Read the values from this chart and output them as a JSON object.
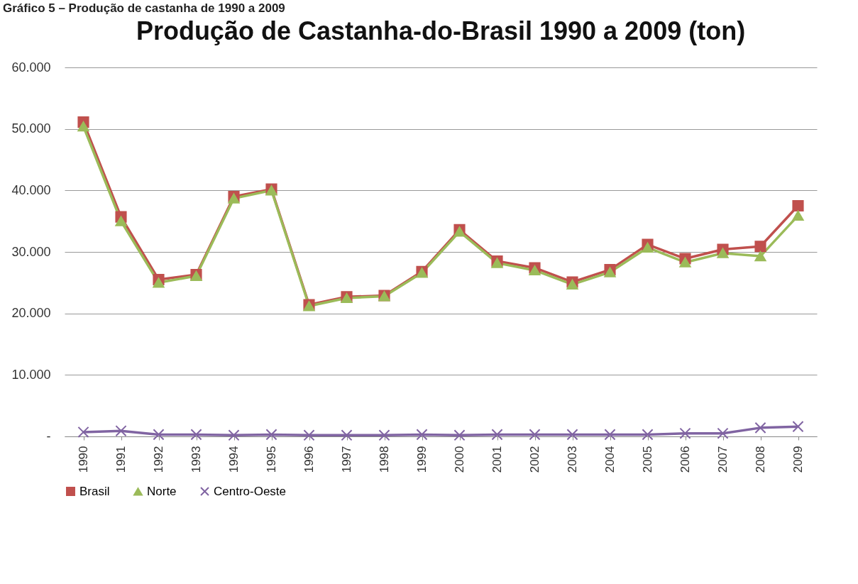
{
  "chart_data": {
    "type": "line",
    "title": "Produção de Castanha-do-Brasil 1990 a 2009 (ton)",
    "annotations": [
      "Gráfico 5 – Produção de castanha de 1990 a 2009"
    ],
    "categories": [
      "1990",
      "1991",
      "1992",
      "1993",
      "1994",
      "1995",
      "1996",
      "1997",
      "1998",
      "1999",
      "2000",
      "2001",
      "2002",
      "2003",
      "2004",
      "2005",
      "2006",
      "2007",
      "2008",
      "2009"
    ],
    "series": [
      {
        "name": "Brasil",
        "color": "#c0504d",
        "marker": "square",
        "values": [
          51100,
          35700,
          25500,
          26300,
          39000,
          40200,
          21400,
          22700,
          22900,
          26800,
          33600,
          28500,
          27400,
          25100,
          27100,
          31200,
          28900,
          30400,
          30900,
          37500
        ]
      },
      {
        "name": "Norte",
        "color": "#9bbb59",
        "marker": "triangle",
        "values": [
          50400,
          35000,
          25000,
          26100,
          38700,
          40000,
          21200,
          22500,
          22800,
          26600,
          33300,
          28200,
          27000,
          24700,
          26700,
          30700,
          28300,
          29800,
          29300,
          35900
        ]
      },
      {
        "name": "Centro-Oeste",
        "color": "#8064a2",
        "marker": "cross",
        "values": [
          700,
          900,
          300,
          300,
          200,
          300,
          200,
          200,
          200,
          300,
          200,
          300,
          300,
          300,
          300,
          300,
          500,
          500,
          1400,
          1600
        ]
      }
    ],
    "ylim": [
      0,
      60000
    ],
    "yticks": [
      {
        "value": 0,
        "label": "-"
      },
      {
        "value": 10000,
        "label": "10.000"
      },
      {
        "value": 20000,
        "label": "20.000"
      },
      {
        "value": 30000,
        "label": "30.000"
      },
      {
        "value": 40000,
        "label": "40.000"
      },
      {
        "value": 50000,
        "label": "50.000"
      },
      {
        "value": 60000,
        "label": "60.000"
      }
    ],
    "grid": "y",
    "legend": "bottom",
    "line_style": "solid"
  }
}
